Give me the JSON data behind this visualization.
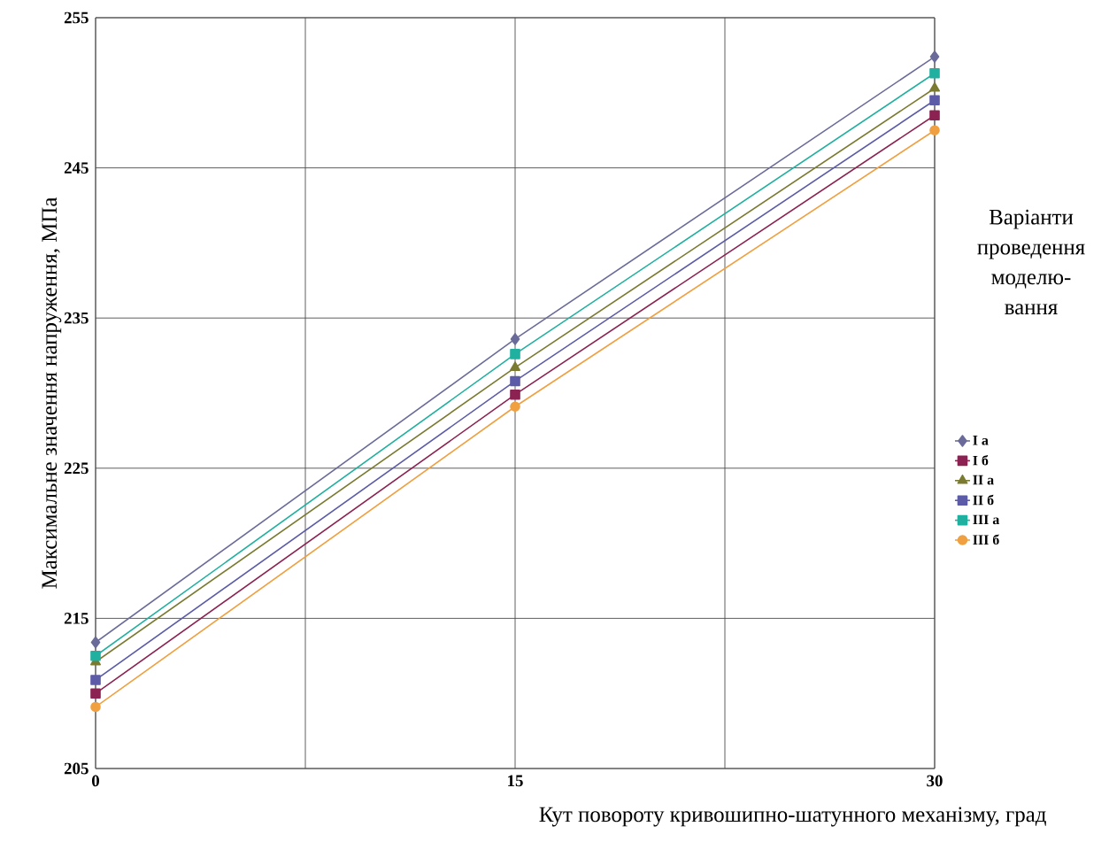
{
  "chart_data": {
    "type": "line",
    "xlabel": "Кут повороту кривошипно-шатунного механізму, град",
    "ylabel": "Максимальне значення напруження, МПа",
    "legend_title": "Варіанти проведення моделю- вання",
    "x": [
      0,
      15,
      30
    ],
    "xlim": [
      0,
      30
    ],
    "ylim": [
      205,
      255
    ],
    "xticks": [
      0,
      {
        "value": 7.5,
        "label": null
      },
      15,
      {
        "value": 22.5,
        "label": null
      },
      30
    ],
    "yticks": [
      205,
      215,
      225,
      235,
      245,
      255
    ],
    "grid": true,
    "legend": "right",
    "line_style": "solid",
    "series": [
      {
        "name": "I а",
        "color": "#6b6b9a",
        "marker": "diamond",
        "values": [
          213.4,
          233.6,
          252.4
        ]
      },
      {
        "name": "I б",
        "color": "#8b2252",
        "marker": "square",
        "values": [
          210.0,
          229.9,
          248.5
        ]
      },
      {
        "name": "II а",
        "color": "#7a7a30",
        "marker": "triangle",
        "values": [
          212.1,
          231.7,
          250.3
        ]
      },
      {
        "name": "II б",
        "color": "#5b5ba8",
        "marker": "square",
        "values": [
          210.9,
          230.8,
          249.5
        ]
      },
      {
        "name": "III а",
        "color": "#20b0a0",
        "marker": "square",
        "values": [
          212.5,
          232.6,
          251.3
        ]
      },
      {
        "name": "III б",
        "color": "#f0a040",
        "marker": "circle",
        "values": [
          209.1,
          229.1,
          247.5
        ]
      }
    ]
  }
}
